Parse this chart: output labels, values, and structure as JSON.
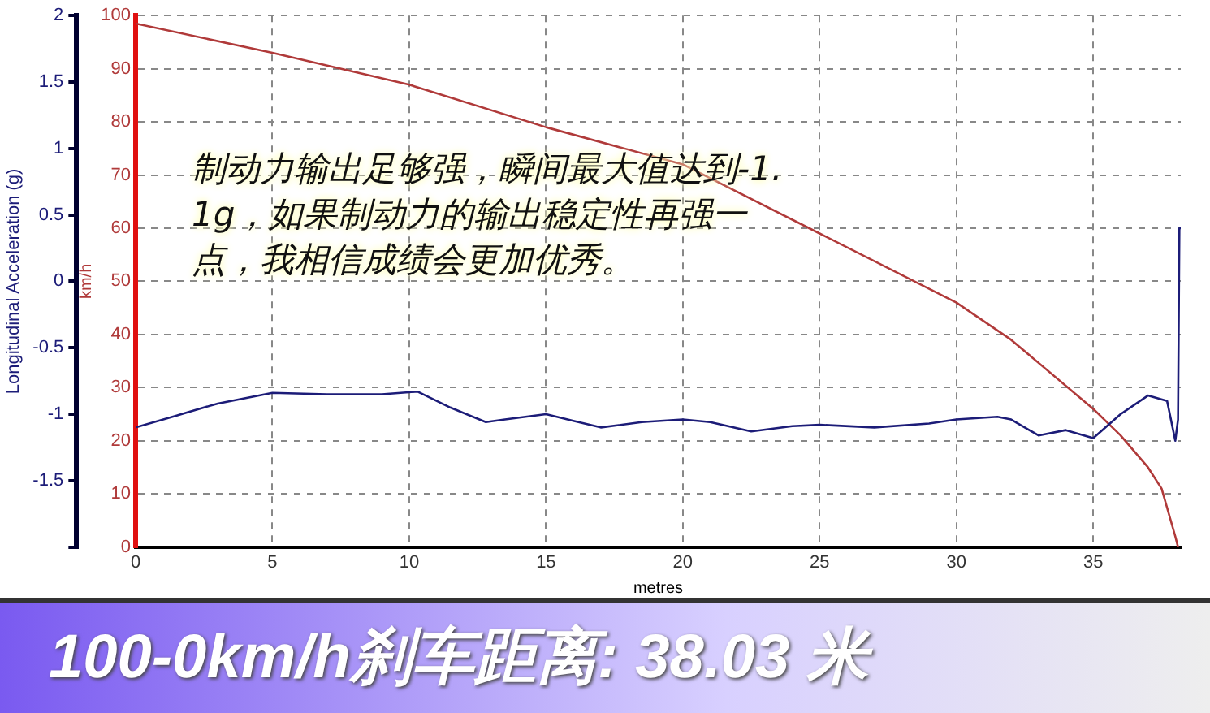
{
  "chart_data": {
    "type": "line",
    "title": "100-0km/h刹车距离: 38.03 米",
    "xlabel": "metres",
    "ylabel": "Longitudinal Acceleration (g)",
    "y2label": "km/h",
    "annotations": [
      "制动力输出足够强，瞬间最大值达到-1.1g，如果制动力的输出稳定性再强一点，我相信成绩会更加优秀。"
    ],
    "xlim": [
      0,
      38.2
    ],
    "xticks": [
      0,
      5,
      10,
      15,
      20,
      25,
      30,
      35
    ],
    "ylim": [
      -2,
      2
    ],
    "yticks": [
      {
        "value": -2,
        "label": null
      },
      -1.5,
      -1,
      -0.5,
      0,
      0.5,
      1,
      1.5,
      2
    ],
    "y2lim": [
      0,
      100
    ],
    "y2ticks": [
      0,
      10,
      20,
      30,
      40,
      50,
      60,
      70,
      80,
      90,
      100
    ],
    "grid": true,
    "legend": false,
    "marker": "none",
    "line_style": "solid",
    "series": [
      {
        "color": "#1c1c78",
        "axis": "y",
        "x": [
          0,
          1.5,
          3,
          5,
          7,
          9,
          10.3,
          11.5,
          12.8,
          13.5,
          15,
          16,
          17,
          18.5,
          20,
          21,
          22.5,
          24,
          25,
          27,
          29,
          30,
          31.5,
          32,
          33,
          34,
          35,
          36,
          37,
          37.7,
          38,
          38.1,
          38.15,
          38.2
        ],
        "values": [
          -1.1,
          -1.01,
          -0.92,
          -0.84,
          -0.85,
          -0.85,
          -0.83,
          -0.95,
          -1.06,
          -1.04,
          -1.0,
          -1.05,
          -1.1,
          -1.06,
          -1.04,
          -1.06,
          -1.13,
          -1.09,
          -1.08,
          -1.1,
          -1.07,
          -1.04,
          -1.02,
          -1.04,
          -1.16,
          -1.12,
          -1.18,
          -1.0,
          -0.86,
          -0.9,
          -1.2,
          -1.04,
          0.4,
          0.4
        ]
      },
      {
        "color": "#b03a3a",
        "axis": "y2",
        "x": [
          0,
          5,
          10,
          15,
          20,
          25,
          30,
          32,
          35,
          36,
          37,
          37.5,
          38,
          38.1
        ],
        "values": [
          98.5,
          93,
          87,
          79,
          72,
          59,
          46,
          39,
          26,
          21,
          15,
          11,
          2,
          0
        ]
      }
    ]
  }
}
